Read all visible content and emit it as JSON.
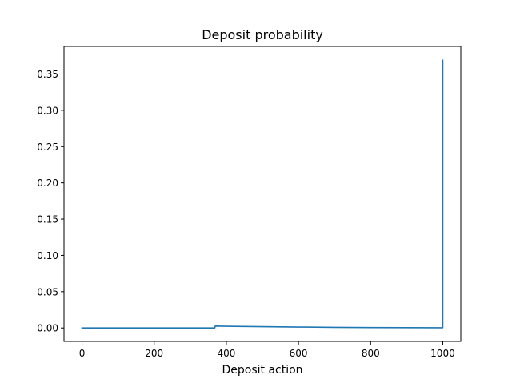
{
  "chart_data": {
    "type": "line",
    "title": "Deposit probability",
    "xlabel": "Deposit action",
    "ylabel": "",
    "xlim": [
      -50,
      1050
    ],
    "ylim": [
      -0.0185,
      0.388
    ],
    "xticks": [
      0,
      200,
      400,
      600,
      800,
      1000
    ],
    "xtick_labels": [
      "0",
      "200",
      "400",
      "600",
      "800",
      "1000"
    ],
    "yticks": [
      0.0,
      0.05,
      0.1,
      0.15,
      0.2,
      0.25,
      0.3,
      0.35
    ],
    "ytick_labels": [
      "0.00",
      "0.05",
      "0.10",
      "0.15",
      "0.20",
      "0.25",
      "0.30",
      "0.35"
    ],
    "grid": false,
    "line_color": "#1f77b4",
    "series": [
      {
        "x": [
          0,
          100,
          200,
          300,
          368,
          369,
          370,
          400,
          450,
          500,
          600,
          700,
          800,
          900,
          999,
          1000,
          1000
        ],
        "y": [
          0.0,
          0.0,
          0.0,
          0.0,
          0.0,
          0.0025,
          0.0026,
          0.0024,
          0.0021,
          0.0018,
          0.0013,
          0.0009,
          0.0006,
          0.0004,
          0.0003,
          0.0003,
          0.369
        ]
      }
    ]
  }
}
